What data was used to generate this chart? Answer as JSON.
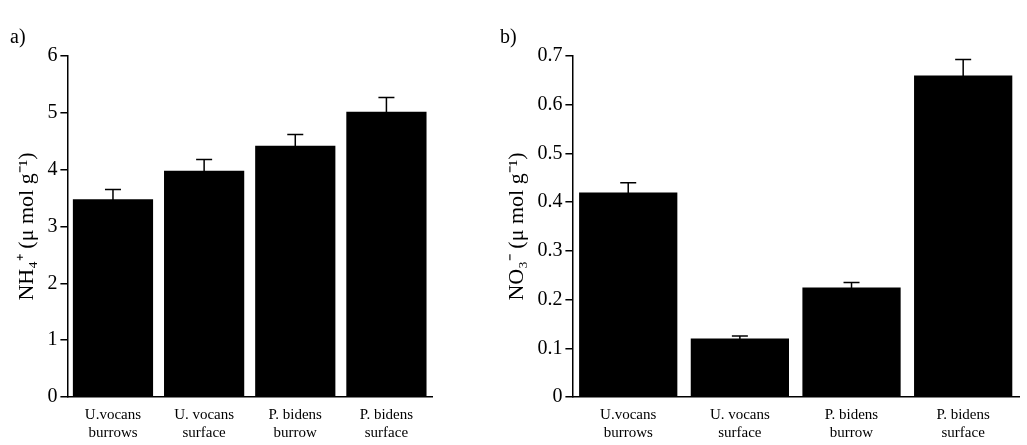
{
  "chart_data": [
    {
      "type": "bar",
      "title": "a)",
      "ylabel": "NH₄⁺ (μ mol g⁻¹)",
      "categories": [
        "U.vocans\nburrows",
        "U. vocans\nsurface",
        "P. bidens\nburrow",
        "P. bidens\nsurface"
      ],
      "values": [
        3.48,
        3.98,
        4.42,
        5.02
      ],
      "errors": [
        0.17,
        0.2,
        0.2,
        0.25
      ],
      "color": "#000000",
      "ylim": [
        0,
        6
      ],
      "yticks": [
        0,
        1,
        2,
        3,
        4,
        5,
        6
      ],
      "grid": false,
      "legend": false
    },
    {
      "type": "bar",
      "title": "b)",
      "ylabel": "NO₃⁻ (μ mol g⁻¹)",
      "categories": [
        "U.vocans\nburrows",
        "U. vocans\nsurface",
        "P. bidens\nburrow",
        "P. bidens\nsurface"
      ],
      "values": [
        0.42,
        0.12,
        0.225,
        0.66
      ],
      "errors": [
        0.02,
        0.005,
        0.01,
        0.033
      ],
      "color": "#000000",
      "ylim": [
        0,
        0.7
      ],
      "yticks": [
        0,
        0.1,
        0.2,
        0.3,
        0.4,
        0.5,
        0.6,
        0.7
      ],
      "grid": false,
      "legend": false
    }
  ]
}
